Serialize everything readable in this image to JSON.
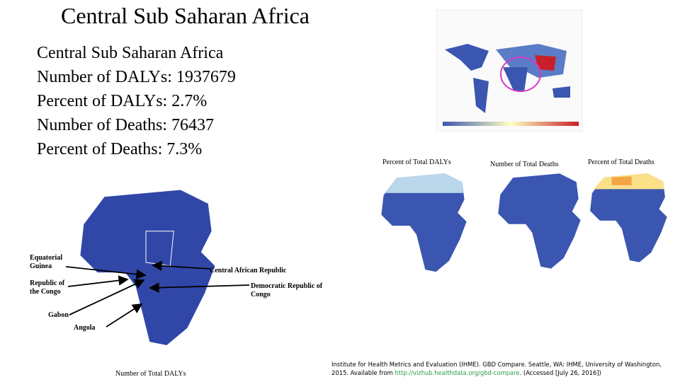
{
  "title": "Central Sub Saharan Africa",
  "stats": [
    "Central Sub Saharan Africa",
    "Number of DALYs: 1937679",
    "Percent of DALYs: 2.7%",
    "Number of Deaths: 76437",
    "Percent of Deaths: 7.3%"
  ],
  "small_maps": [
    "Percent of Total DALYs",
    "Number of Total Deaths",
    "Percent of Total Deaths"
  ],
  "main_map": {
    "caption": "Number of Total DALYs",
    "labels": [
      "Equatorial Guinea",
      "Central African Republic",
      "Republic of the Congo",
      "Democratic Republic of Congo",
      "Gabon",
      "Angola"
    ]
  },
  "citation": {
    "text": "Institute for Health Metrics and Evaluation (IHME). GBD Compare. Seattle, WA: IHME, University of Washington, 2015. Available from ",
    "link": "http://vizhub.healthdata.org/gbd-compare",
    "after": ". (Accessed [July 26, 2016])"
  }
}
